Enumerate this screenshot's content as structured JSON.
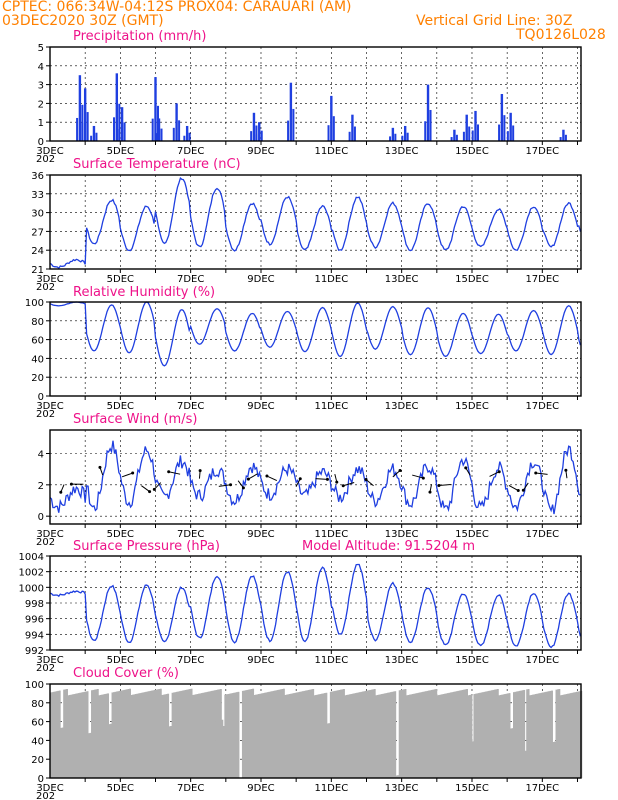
{
  "header": {
    "line1": "CPTEC:   066:34W-04:12S   PROX04: CARAUARI (AM)",
    "line2": "03DEC2020 30Z (GMT)",
    "grid_note": "Vertical Grid Line: 30Z",
    "code": "TQ0126L028"
  },
  "colors": {
    "header": "#ff8000",
    "title": "#ee1289",
    "line": "#1f3fe0",
    "cloud": "#b0b0b0"
  },
  "chart_data": [
    {
      "type": "bar",
      "title": "Precipitation (mm/h)",
      "ylim": [
        0,
        5
      ],
      "yticks": [
        "0",
        "1",
        "2",
        "3",
        "4",
        "5"
      ],
      "x_ticks": [
        "3DEC",
        "5DEC",
        "7DEC",
        "9DEC",
        "11DEC",
        "13DEC",
        "15DEC",
        "17DEC"
      ],
      "peaks": [
        {
          "day": 3.85,
          "value": 3.5
        },
        {
          "day": 4.0,
          "value": 2.8
        },
        {
          "day": 4.25,
          "value": 0.8
        },
        {
          "day": 4.9,
          "value": 3.6
        },
        {
          "day": 5.05,
          "value": 1.8
        },
        {
          "day": 6.0,
          "value": 3.4
        },
        {
          "day": 6.1,
          "value": 1.2
        },
        {
          "day": 6.6,
          "value": 2.0
        },
        {
          "day": 6.9,
          "value": 0.8
        },
        {
          "day": 8.8,
          "value": 1.5
        },
        {
          "day": 8.95,
          "value": 1.0
        },
        {
          "day": 9.85,
          "value": 3.1
        },
        {
          "day": 11.6,
          "value": 1.4
        },
        {
          "day": 11.0,
          "value": 2.4
        },
        {
          "day": 12.75,
          "value": 0.7
        },
        {
          "day": 13.1,
          "value": 0.8
        },
        {
          "day": 13.75,
          "value": 3.0
        },
        {
          "day": 14.5,
          "value": 0.6
        },
        {
          "day": 14.85,
          "value": 1.4
        },
        {
          "day": 15.1,
          "value": 1.6
        },
        {
          "day": 15.85,
          "value": 2.5
        },
        {
          "day": 16.1,
          "value": 1.5
        },
        {
          "day": 17.6,
          "value": 0.6
        }
      ]
    },
    {
      "type": "line",
      "title": "Surface Temperature (nC)",
      "ylim": [
        21,
        36
      ],
      "yticks": [
        "21",
        "24",
        "27",
        "30",
        "33",
        "36"
      ],
      "x_ticks": [
        "3DEC",
        "5DEC",
        "7DEC",
        "9DEC",
        "11DEC",
        "13DEC",
        "15DEC",
        "17DEC"
      ],
      "daily_max": [
        22.5,
        32.0,
        31.0,
        35.5,
        34.0,
        31.5,
        32.5,
        31.0,
        32.5,
        31.5,
        31.5,
        31.0,
        30.5,
        31.0,
        31.5,
        33.0
      ],
      "daily_min": [
        21.3,
        25.0,
        24.0,
        25.0,
        24.5,
        24.0,
        25.0,
        24.0,
        24.0,
        24.5,
        24.0,
        24.0,
        24.5,
        24.0,
        24.5,
        25.0
      ]
    },
    {
      "type": "line",
      "title": "Relative Humidity (%)",
      "ylim": [
        0,
        100
      ],
      "yticks": [
        "0",
        "20",
        "40",
        "60",
        "80",
        "100"
      ],
      "x_ticks": [
        "3DEC",
        "5DEC",
        "7DEC",
        "9DEC",
        "11DEC",
        "13DEC",
        "15DEC",
        "17DEC"
      ],
      "daily_max": [
        100,
        97,
        100,
        92,
        93,
        88,
        90,
        94,
        99,
        95,
        94,
        88,
        87,
        91,
        96,
        90
      ],
      "daily_min": [
        96,
        48,
        46,
        32,
        55,
        48,
        52,
        47,
        42,
        50,
        44,
        42,
        45,
        48,
        44,
        42
      ]
    },
    {
      "type": "line",
      "title": "Surface Wind (m/s)",
      "ylim": [
        -0.5,
        5.5
      ],
      "yticks": [
        "0",
        "2",
        "4"
      ],
      "x_ticks": [
        "3DEC",
        "5DEC",
        "7DEC",
        "9DEC",
        "11DEC",
        "13DEC",
        "15DEC",
        "17DEC"
      ],
      "daily_max": [
        1.8,
        4.5,
        4.2,
        3.5,
        3.0,
        3.2,
        3.0,
        2.8,
        3.0,
        3.0,
        3.2,
        3.6,
        3.1,
        3.5,
        4.3,
        3.0
      ],
      "daily_min": [
        0.6,
        0.5,
        0.9,
        1.2,
        1.3,
        1.0,
        1.4,
        1.3,
        1.2,
        1.0,
        0.8,
        0.4,
        0.5,
        0.6,
        0.3,
        0.8
      ]
    },
    {
      "type": "line",
      "title": "Surface Pressure (hPa)",
      "annotation": "Model Altitude: 91.5204 m",
      "ylim": [
        992,
        1004
      ],
      "yticks": [
        "992",
        "994",
        "996",
        "998",
        "1000",
        "1002",
        "1004"
      ],
      "x_ticks": [
        "3DEC",
        "5DEC",
        "7DEC",
        "9DEC",
        "11DEC",
        "13DEC",
        "15DEC",
        "17DEC"
      ],
      "daily_max": [
        999.5,
        1000.2,
        1000.3,
        1000.0,
        1001.5,
        1001.5,
        1002.0,
        1002.5,
        1003.0,
        1000.5,
        1000.0,
        999.2,
        999.0,
        999.3,
        999.2,
        999.0
      ],
      "daily_min": [
        999.0,
        993.2,
        993.0,
        993.0,
        993.5,
        993.0,
        993.2,
        993.0,
        994.0,
        993.3,
        993.0,
        992.6,
        992.5,
        992.5,
        992.3,
        992.0
      ]
    },
    {
      "type": "area",
      "title": "Cloud Cover (%)",
      "ylim": [
        0,
        100
      ],
      "yticks": [
        "0",
        "20",
        "40",
        "60",
        "80",
        "100"
      ],
      "x_ticks": [
        "3DEC",
        "5DEC",
        "7DEC",
        "9DEC",
        "11DEC",
        "13DEC",
        "15DEC",
        "17DEC"
      ],
      "typical": 95,
      "dips": [
        {
          "day": 3.3,
          "value": 55
        },
        {
          "day": 4.1,
          "value": 50
        },
        {
          "day": 4.7,
          "value": 62
        },
        {
          "day": 6.4,
          "value": 60
        },
        {
          "day": 7.9,
          "value": 62
        },
        {
          "day": 8.4,
          "value": 3
        },
        {
          "day": 10.9,
          "value": 62
        },
        {
          "day": 12.85,
          "value": 5
        },
        {
          "day": 15.0,
          "value": 45
        },
        {
          "day": 16.1,
          "value": 57
        },
        {
          "day": 16.5,
          "value": 30
        },
        {
          "day": 17.3,
          "value": 40
        }
      ]
    }
  ]
}
